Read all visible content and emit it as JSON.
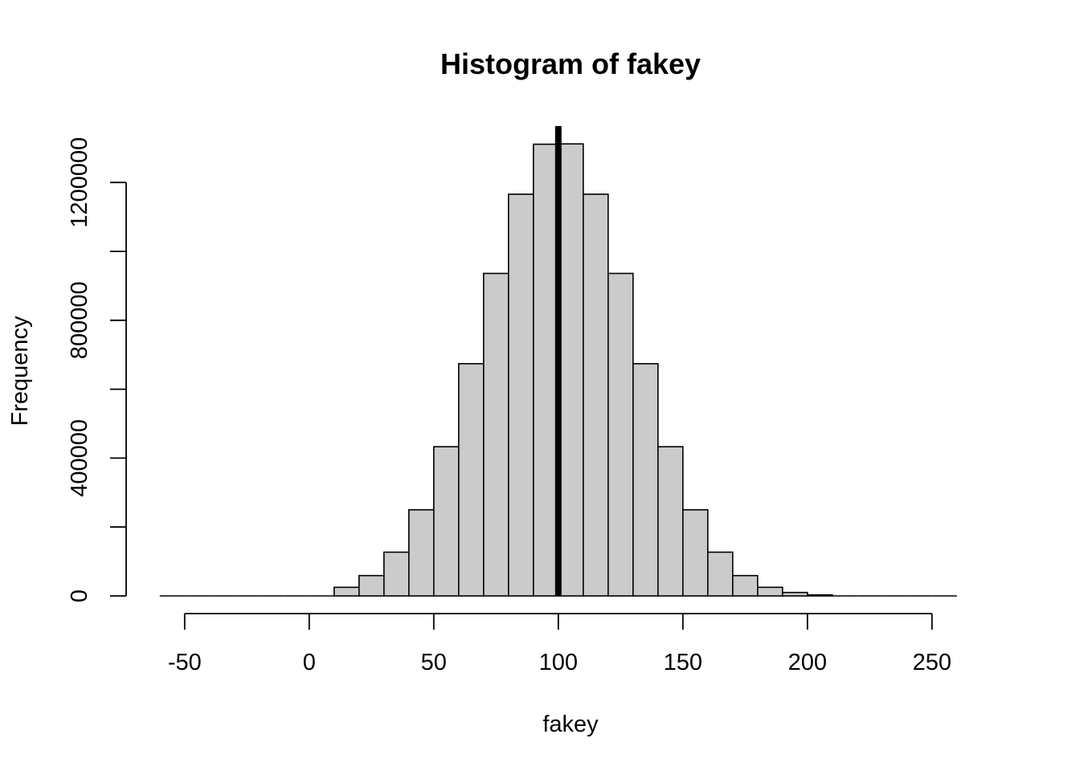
{
  "chart_data": {
    "type": "bar",
    "title": "Histogram of fakey",
    "xlabel": "fakey",
    "ylabel": "Frequency",
    "xlim": [
      -60,
      270
    ],
    "ylim": [
      0,
      1350000
    ],
    "x_ticks": [
      -50,
      0,
      50,
      100,
      150,
      200,
      250
    ],
    "y_ticks": [
      0,
      400000,
      800000,
      1200000
    ],
    "bin_width": 10,
    "bin_starts": [
      -60,
      -50,
      -40,
      -30,
      -20,
      -10,
      0,
      10,
      20,
      30,
      40,
      50,
      60,
      70,
      80,
      90,
      100,
      110,
      120,
      130,
      140,
      150,
      160,
      170,
      180,
      190,
      200,
      210,
      220,
      230,
      240,
      250
    ],
    "values": [
      0,
      0,
      0,
      0,
      0,
      0,
      0,
      25000,
      59000,
      127000,
      250000,
      433000,
      674000,
      936000,
      1166000,
      1311000,
      1312000,
      1166000,
      936000,
      674000,
      433000,
      250000,
      127000,
      59000,
      25000,
      10000,
      3000,
      0,
      0,
      0,
      0,
      0
    ],
    "reference_line_x": 100,
    "bar_fill": "#cbcbcb",
    "bar_stroke": "#000000",
    "grid": false,
    "legend": false
  }
}
